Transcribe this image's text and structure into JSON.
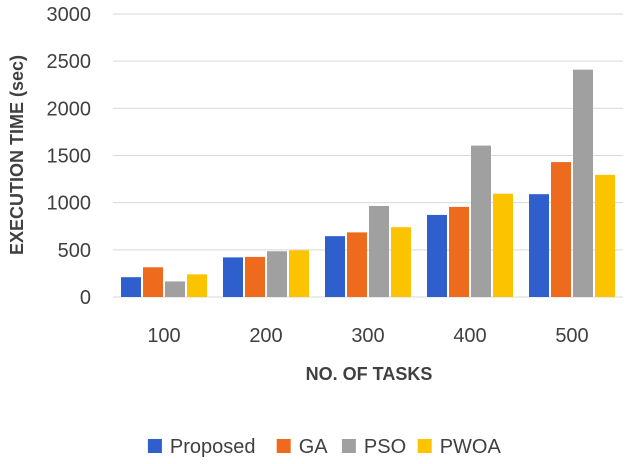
{
  "chart_data": {
    "type": "bar",
    "title": "",
    "xlabel": "NO. OF TASKS",
    "ylabel": "EXECUTION TIME (sec)",
    "ylim": [
      0,
      3000
    ],
    "yticks": [
      0,
      500,
      1000,
      1500,
      2000,
      2500,
      3000
    ],
    "categories": [
      "100",
      "200",
      "300",
      "400",
      "500"
    ],
    "grid": true,
    "legend_position": "bottom",
    "series": [
      {
        "name": "Proposed",
        "color": "#2e5fcc",
        "values": [
          210,
          420,
          645,
          870,
          1090
        ]
      },
      {
        "name": "GA",
        "color": "#ee6a1c",
        "values": [
          315,
          425,
          685,
          955,
          1430
        ]
      },
      {
        "name": "PSO",
        "color": "#a0a0a0",
        "values": [
          165,
          485,
          965,
          1605,
          2410
        ]
      },
      {
        "name": "PWOA",
        "color": "#fcc300",
        "values": [
          240,
          495,
          740,
          1095,
          1295
        ]
      }
    ]
  }
}
